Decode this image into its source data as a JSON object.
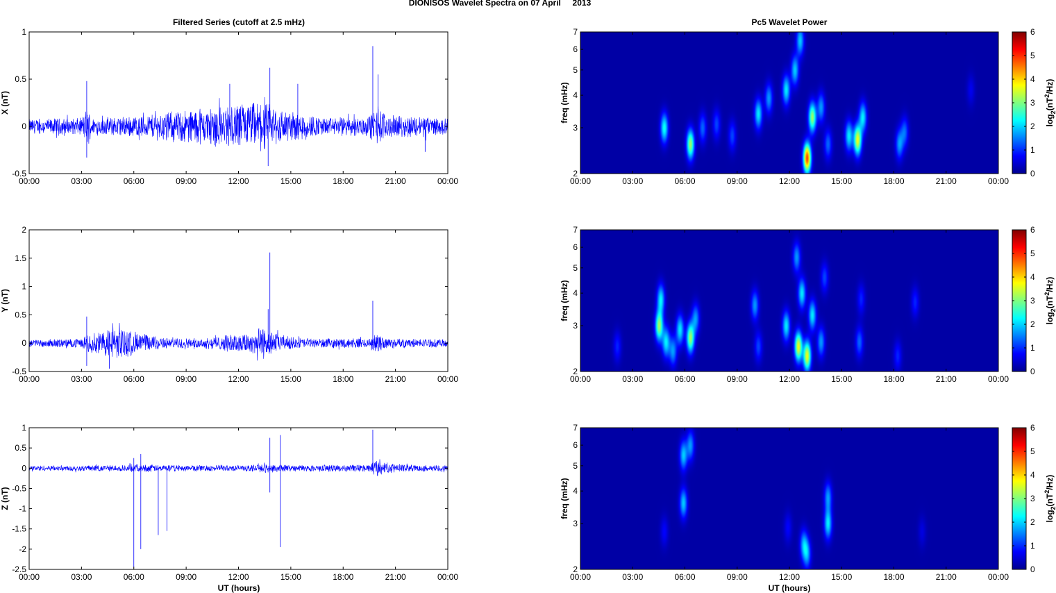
{
  "figure": {
    "title": "DIONISOS Wavelet Spectra on 07 April     2013",
    "left_title": "Filtered Series (cutoff at 2.5 mHz)",
    "right_title": "Pc5 Wavelet Power",
    "xlabel": "UT (hours)"
  },
  "chart_data": [
    {
      "type": "line",
      "component": "X",
      "ylabel": "X (nT)",
      "ylim": [
        -0.5,
        1
      ],
      "yticks": [
        "-0.5",
        "0",
        "0.5",
        "1"
      ],
      "xlim_hours": [
        0,
        24
      ],
      "xtick_labels": [
        "00:00",
        "03:00",
        "06:00",
        "09:00",
        "12:00",
        "15:00",
        "18:00",
        "21:00",
        "00:00"
      ],
      "series_color": "#0000ff",
      "base_amplitude": 0.07,
      "envelope": [
        [
          0,
          0.07
        ],
        [
          3,
          0.08
        ],
        [
          3.3,
          0.18
        ],
        [
          3.6,
          0.08
        ],
        [
          6,
          0.1
        ],
        [
          8.5,
          0.15
        ],
        [
          10,
          0.17
        ],
        [
          12,
          0.22
        ],
        [
          13.5,
          0.22
        ],
        [
          15,
          0.15
        ],
        [
          17,
          0.08
        ],
        [
          19.5,
          0.1
        ],
        [
          20,
          0.2
        ],
        [
          20.5,
          0.1
        ],
        [
          22.7,
          0.1
        ],
        [
          24,
          0.07
        ]
      ],
      "spikes": [
        [
          3.3,
          0.48
        ],
        [
          3.3,
          -0.33
        ],
        [
          13.8,
          0.62
        ],
        [
          13.7,
          -0.42
        ],
        [
          19.7,
          0.85
        ],
        [
          20.0,
          0.55
        ],
        [
          22.7,
          -0.27
        ],
        [
          11.5,
          0.45
        ],
        [
          15.4,
          0.45
        ]
      ]
    },
    {
      "type": "line",
      "component": "Y",
      "ylabel": "Y (nT)",
      "ylim": [
        -0.5,
        2
      ],
      "yticks": [
        "-0.5",
        "0",
        "0.5",
        "1",
        "1.5",
        "2"
      ],
      "xlim_hours": [
        0,
        24
      ],
      "xtick_labels": [
        "00:00",
        "03:00",
        "06:00",
        "09:00",
        "12:00",
        "15:00",
        "18:00",
        "21:00",
        "00:00"
      ],
      "series_color": "#0000ff",
      "base_amplitude": 0.06,
      "envelope": [
        [
          0,
          0.06
        ],
        [
          3,
          0.07
        ],
        [
          3.3,
          0.15
        ],
        [
          4,
          0.18
        ],
        [
          5,
          0.28
        ],
        [
          6.5,
          0.15
        ],
        [
          8,
          0.08
        ],
        [
          10,
          0.08
        ],
        [
          12,
          0.15
        ],
        [
          13.5,
          0.25
        ],
        [
          14.5,
          0.12
        ],
        [
          16,
          0.07
        ],
        [
          19.5,
          0.08
        ],
        [
          20,
          0.15
        ],
        [
          20.5,
          0.08
        ],
        [
          24,
          0.06
        ]
      ],
      "spikes": [
        [
          3.3,
          0.47
        ],
        [
          3.3,
          -0.4
        ],
        [
          13.8,
          1.6
        ],
        [
          13.7,
          0.6
        ],
        [
          19.7,
          0.75
        ],
        [
          4.6,
          -0.45
        ]
      ]
    },
    {
      "type": "line",
      "component": "Z",
      "ylabel": "Z (nT)",
      "ylim": [
        -2.5,
        1
      ],
      "yticks": [
        "-2.5",
        "-2",
        "-1.5",
        "-1",
        "-0.5",
        "0",
        "0.5",
        "1"
      ],
      "xlim_hours": [
        0,
        24
      ],
      "xtick_labels": [
        "00:00",
        "03:00",
        "06:00",
        "09:00",
        "12:00",
        "15:00",
        "18:00",
        "21:00",
        "00:00"
      ],
      "series_color": "#0000ff",
      "base_amplitude": 0.06,
      "envelope": [
        [
          0,
          0.06
        ],
        [
          5.5,
          0.07
        ],
        [
          6,
          0.09
        ],
        [
          8,
          0.07
        ],
        [
          13,
          0.07
        ],
        [
          14,
          0.1
        ],
        [
          15,
          0.07
        ],
        [
          19.5,
          0.08
        ],
        [
          20,
          0.22
        ],
        [
          20.5,
          0.12
        ],
        [
          21.5,
          0.08
        ],
        [
          24,
          0.06
        ]
      ],
      "spikes": [
        [
          6.0,
          -2.45
        ],
        [
          6.4,
          -2.0
        ],
        [
          7.4,
          -1.65
        ],
        [
          7.9,
          -1.55
        ],
        [
          13.8,
          -0.6
        ],
        [
          13.8,
          0.75
        ],
        [
          14.4,
          0.82
        ],
        [
          14.4,
          -1.95
        ],
        [
          19.7,
          0.95
        ],
        [
          6.0,
          0.25
        ],
        [
          6.4,
          0.35
        ]
      ]
    },
    {
      "type": "heatmap",
      "component": "X",
      "ylabel": "freq (mHz)",
      "yscale": "log",
      "ylim_mhz": [
        2,
        7
      ],
      "yticks": [
        "2",
        "3",
        "4",
        "5",
        "6",
        "7"
      ],
      "xlim_hours": [
        0,
        24
      ],
      "xtick_labels": [
        "00:00",
        "03:00",
        "06:00",
        "09:00",
        "12:00",
        "15:00",
        "18:00",
        "21:00",
        "00:00"
      ],
      "colorbar_label": "log2(nT2/Hz)",
      "clim": [
        0,
        6
      ],
      "colorbar_ticks": [
        "0",
        "1",
        "2",
        "3",
        "4",
        "5",
        "6"
      ],
      "features": [
        [
          4.8,
          3.0,
          2.2
        ],
        [
          6.3,
          2.6,
          3.0
        ],
        [
          7.0,
          3.0,
          1.2
        ],
        [
          7.8,
          3.1,
          1.0
        ],
        [
          8.7,
          2.8,
          1.0
        ],
        [
          10.2,
          3.4,
          2.0
        ],
        [
          10.8,
          3.9,
          1.5
        ],
        [
          11.8,
          4.2,
          2.0
        ],
        [
          12.3,
          5.0,
          1.8
        ],
        [
          13.0,
          2.3,
          4.7
        ],
        [
          13.3,
          3.3,
          3.0
        ],
        [
          12.6,
          6.5,
          1.8
        ],
        [
          13.8,
          3.6,
          1.5
        ],
        [
          14.2,
          2.6,
          1.2
        ],
        [
          15.4,
          2.8,
          2.0
        ],
        [
          15.9,
          2.7,
          3.5
        ],
        [
          16.2,
          3.3,
          2.0
        ],
        [
          18.3,
          2.6,
          1.5
        ],
        [
          18.6,
          2.9,
          1.2
        ],
        [
          22.4,
          4.2,
          0.5
        ]
      ]
    },
    {
      "type": "heatmap",
      "component": "Y",
      "ylabel": "freq (mHz)",
      "yscale": "log",
      "ylim_mhz": [
        2,
        7
      ],
      "yticks": [
        "2",
        "3",
        "4",
        "5",
        "6",
        "7"
      ],
      "xlim_hours": [
        0,
        24
      ],
      "xtick_labels": [
        "00:00",
        "03:00",
        "06:00",
        "09:00",
        "12:00",
        "15:00",
        "18:00",
        "21:00",
        "00:00"
      ],
      "colorbar_label": "log2(nT2/Hz)",
      "clim": [
        0,
        6
      ],
      "colorbar_ticks": [
        "0",
        "1",
        "2",
        "3",
        "4",
        "5",
        "6"
      ],
      "features": [
        [
          4.5,
          3.0,
          3.0
        ],
        [
          4.6,
          3.8,
          2.0
        ],
        [
          4.9,
          2.6,
          2.0
        ],
        [
          5.3,
          2.4,
          1.5
        ],
        [
          5.7,
          2.9,
          2.0
        ],
        [
          6.3,
          2.7,
          3.0
        ],
        [
          6.6,
          3.2,
          1.5
        ],
        [
          2.1,
          2.5,
          0.8
        ],
        [
          10.0,
          3.6,
          1.5
        ],
        [
          10.2,
          2.5,
          1.0
        ],
        [
          11.8,
          3.0,
          2.0
        ],
        [
          12.5,
          2.5,
          3.5
        ],
        [
          12.7,
          4.0,
          2.0
        ],
        [
          13.0,
          2.3,
          3.5
        ],
        [
          13.3,
          3.3,
          2.0
        ],
        [
          13.8,
          2.6,
          1.5
        ],
        [
          14.0,
          4.6,
          1.0
        ],
        [
          12.4,
          5.5,
          1.5
        ],
        [
          16.0,
          2.6,
          1.2
        ],
        [
          16.1,
          3.8,
          0.8
        ],
        [
          18.2,
          2.3,
          0.8
        ],
        [
          19.2,
          3.7,
          0.8
        ]
      ]
    },
    {
      "type": "heatmap",
      "component": "Z",
      "ylabel": "freq (mHz)",
      "yscale": "log",
      "ylim_mhz": [
        2,
        7
      ],
      "yticks": [
        "2",
        "3",
        "4",
        "5",
        "6",
        "7"
      ],
      "xlim_hours": [
        0,
        24
      ],
      "xtick_labels": [
        "00:00",
        "03:00",
        "06:00",
        "09:00",
        "12:00",
        "15:00",
        "18:00",
        "21:00",
        "00:00"
      ],
      "colorbar_label": "log2(nT2/Hz)",
      "clim": [
        0,
        6
      ],
      "colorbar_ticks": [
        "0",
        "1",
        "2",
        "3",
        "4",
        "5",
        "6"
      ],
      "features": [
        [
          5.9,
          3.6,
          1.8
        ],
        [
          5.9,
          5.5,
          1.8
        ],
        [
          6.3,
          6.0,
          1.5
        ],
        [
          12.8,
          2.5,
          1.5
        ],
        [
          13.0,
          2.3,
          1.5
        ],
        [
          14.2,
          3.0,
          2.0
        ],
        [
          14.2,
          3.8,
          1.5
        ],
        [
          4.8,
          2.8,
          0.6
        ],
        [
          11.9,
          2.9,
          0.6
        ],
        [
          19.6,
          2.8,
          0.4
        ]
      ]
    }
  ]
}
